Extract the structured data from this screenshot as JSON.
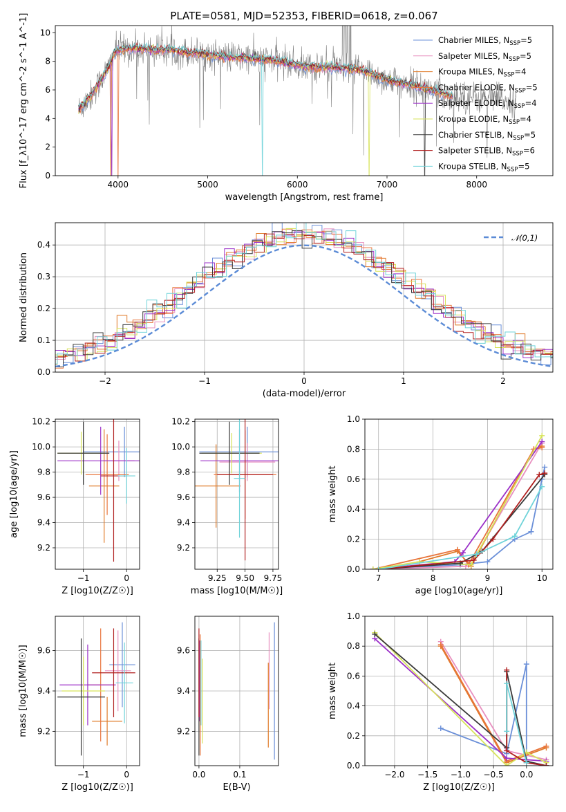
{
  "title": "PLATE=0581, MJD=52353, FIBERID=0618, z=0.067",
  "models": [
    {
      "name": "Chabrier MILES",
      "nssp": "5",
      "color": "#6a8fd8"
    },
    {
      "name": "Salpeter MILES",
      "nssp": "5",
      "color": "#e88fbf"
    },
    {
      "name": "Kroupa MILES",
      "nssp": "4",
      "color": "#e07b2a"
    },
    {
      "name": "Chabrier ELODIE",
      "nssp": "5",
      "color": "#e8743b"
    },
    {
      "name": "Salpeter ELODIE",
      "nssp": "4",
      "color": "#9b30c8"
    },
    {
      "name": "Kroupa ELODIE",
      "nssp": "4",
      "color": "#d7e35a"
    },
    {
      "name": "Chabrier STELIB",
      "nssp": "5",
      "color": "#3a3a3a"
    },
    {
      "name": "Salpeter STELIB",
      "nssp": "6",
      "color": "#b01e1e"
    },
    {
      "name": "Kroupa STELIB",
      "nssp": "5",
      "color": "#6fd3d9"
    }
  ],
  "chart_data": [
    {
      "id": "spectrum",
      "type": "line",
      "xlabel": "wavelength [Angstrom, rest frame]",
      "ylabel": "Flux [f_λ10^-17 erg cm^-2 s^-1 A^-1]",
      "xlim": [
        3300,
        8850
      ],
      "ylim": [
        0,
        10.5
      ],
      "xticks": [
        4000,
        5000,
        6000,
        7000,
        8000
      ],
      "yticks": [
        0,
        2,
        4,
        6,
        8,
        10
      ],
      "legend_position": "upper-right",
      "data_color": "#808080",
      "model_continuum": {
        "x": [
          3560,
          3700,
          3800,
          3900,
          3950,
          4000,
          4100,
          4200,
          4400,
          4600,
          4800,
          5000,
          5200,
          5500,
          5800,
          6100,
          6400,
          6700,
          7000,
          7300,
          7600,
          7700
        ],
        "y": [
          4.6,
          5.6,
          6.6,
          7.6,
          8.5,
          8.8,
          8.9,
          8.9,
          8.8,
          8.8,
          8.6,
          8.5,
          8.3,
          8.2,
          8.0,
          7.6,
          7.6,
          7.4,
          6.7,
          6.3,
          5.8,
          5.6
        ]
      }
    },
    {
      "id": "residuals",
      "type": "histogram",
      "xlabel": "(data-model)/error",
      "ylabel": "Normed distribution",
      "xlim": [
        -2.5,
        2.5
      ],
      "ylim": [
        0,
        0.47
      ],
      "xticks": [
        -2,
        -1,
        0,
        1,
        2
      ],
      "yticks": [
        0,
        0.1,
        0.2,
        0.3,
        0.4
      ],
      "bin_width": 0.1,
      "reference_label": "𝒩(0,1)",
      "reference_color": "#5b8bd6",
      "legend_position": "upper-right"
    },
    {
      "id": "age-vs-Z",
      "type": "errorbar",
      "xlabel": "Z [log10(Z/Z☉)]",
      "ylabel": "age  [log10(age/yr)]",
      "xlim": [
        -1.65,
        0.3
      ],
      "ylim": [
        9.03,
        10.22
      ],
      "xticks": [
        -1,
        0
      ],
      "yticks": [
        9.2,
        9.4,
        9.6,
        9.8,
        10.0,
        10.2
      ],
      "points": [
        {
          "x": -0.05,
          "xerr": 0.95,
          "y": 9.96,
          "yerr": 0.2,
          "model": 0
        },
        {
          "x": -0.18,
          "xerr": 0.36,
          "y": 9.89,
          "yerr": 0.16,
          "model": 1
        },
        {
          "x": -0.52,
          "xerr": 0.35,
          "y": 9.69,
          "yerr": 0.45,
          "model": 2
        },
        {
          "x": -0.45,
          "xerr": 0.5,
          "y": 9.78,
          "yerr": 0.32,
          "model": 3
        },
        {
          "x": -0.6,
          "xerr": 1.0,
          "y": 9.89,
          "yerr": 0.27,
          "model": 4
        },
        {
          "x": -1.05,
          "xerr": 0.55,
          "y": 9.95,
          "yerr": 0.17,
          "model": 5
        },
        {
          "x": -1.0,
          "xerr": 0.6,
          "y": 9.95,
          "yerr": 0.25,
          "model": 6
        },
        {
          "x": -0.3,
          "xerr": 0.3,
          "y": 9.77,
          "yerr": 0.68,
          "model": 7
        },
        {
          "x": 0.0,
          "xerr": 0.2,
          "y": 9.77,
          "yerr": 0.22,
          "model": 8
        }
      ]
    },
    {
      "id": "age-vs-mass",
      "type": "errorbar",
      "xlabel": "mass [log10(M/M☉)]",
      "ylabel": "",
      "xlim": [
        9.05,
        9.8
      ],
      "ylim": [
        9.03,
        10.22
      ],
      "xticks": [
        9.25,
        9.5,
        9.75
      ],
      "yticks": [
        9.2,
        9.4,
        9.6,
        9.8,
        10.0,
        10.2
      ],
      "points": [
        {
          "x": 9.52,
          "xerr": 0.43,
          "y": 9.96,
          "yerr": 0.2,
          "model": 0
        },
        {
          "x": 9.52,
          "xerr": 0.25,
          "y": 9.88,
          "yerr": 0.15,
          "model": 1
        },
        {
          "x": 9.24,
          "xerr": 0.22,
          "y": 9.69,
          "yerr": 0.33,
          "model": 2
        },
        {
          "x": 9.5,
          "xerr": 0.28,
          "y": 9.78,
          "yerr": 0.35,
          "model": 3
        },
        {
          "x": 9.45,
          "xerr": 0.35,
          "y": 9.89,
          "yerr": 0.25,
          "model": 4
        },
        {
          "x": 9.38,
          "xerr": 0.27,
          "y": 9.95,
          "yerr": 0.16,
          "model": 5
        },
        {
          "x": 9.36,
          "xerr": 0.27,
          "y": 9.95,
          "yerr": 0.25,
          "model": 6
        },
        {
          "x": 9.5,
          "xerr": 0.25,
          "y": 9.78,
          "yerr": 0.68,
          "model": 7
        },
        {
          "x": 9.45,
          "xerr": 0.05,
          "y": 9.75,
          "yerr": 0.47,
          "model": 8
        }
      ]
    },
    {
      "id": "weight-vs-age",
      "type": "line",
      "xlabel": "age  [log10(age/yr)]",
      "ylabel": "mass weight",
      "xlim": [
        6.75,
        10.2
      ],
      "ylim": [
        0,
        1.0
      ],
      "xticks": [
        7,
        8,
        9,
        10
      ],
      "yticks": [
        0,
        0.2,
        0.4,
        0.6,
        0.8,
        1.0
      ],
      "series": [
        {
          "model": 0,
          "x": [
            6.9,
            8.5,
            9.0,
            9.5,
            9.8,
            10.0,
            10.05
          ],
          "y": [
            0.0,
            0.03,
            0.05,
            0.2,
            0.25,
            0.6,
            0.68
          ]
        },
        {
          "model": 1,
          "x": [
            7.0,
            8.6,
            8.8,
            10.0
          ],
          "y": [
            0.0,
            0.02,
            0.1,
            0.84
          ]
        },
        {
          "model": 2,
          "x": [
            7.75,
            8.45,
            8.7,
            9.85,
            10.0
          ],
          "y": [
            0.05,
            0.12,
            0.02,
            0.8,
            0.82
          ]
        },
        {
          "model": 3,
          "x": [
            6.9,
            8.45,
            8.65,
            9.85,
            10.0
          ],
          "y": [
            0.0,
            0.13,
            0.03,
            0.8,
            0.81
          ]
        },
        {
          "model": 4,
          "x": [
            6.9,
            8.4,
            8.55,
            10.0
          ],
          "y": [
            0.0,
            0.05,
            0.11,
            0.85
          ]
        },
        {
          "model": 5,
          "x": [
            6.9,
            7.75,
            8.7,
            10.0
          ],
          "y": [
            0.0,
            0.05,
            0.03,
            0.89
          ]
        },
        {
          "model": 6,
          "x": [
            7.0,
            8.5,
            8.9,
            10.05
          ],
          "y": [
            0.0,
            0.04,
            0.12,
            0.63
          ]
        },
        {
          "model": 7,
          "x": [
            7.0,
            8.75,
            9.1,
            9.95,
            10.05
          ],
          "y": [
            0.0,
            0.06,
            0.2,
            0.63,
            0.64
          ]
        },
        {
          "model": 8,
          "x": [
            7.0,
            8.8,
            9.5,
            10.0
          ],
          "y": [
            0.0,
            0.1,
            0.22,
            0.55
          ]
        }
      ]
    },
    {
      "id": "mass-vs-Z",
      "type": "errorbar",
      "xlabel": "Z [log10(Z/Z☉)]",
      "ylabel": "mass [log10(M/M☉)]",
      "xlim": [
        -1.65,
        0.3
      ],
      "ylim": [
        9.03,
        9.77
      ],
      "xticks": [
        -1,
        0
      ],
      "yticks": [
        9.2,
        9.4,
        9.6
      ],
      "points": [
        {
          "x": -0.1,
          "xerr": 0.3,
          "y": 9.53,
          "yerr": 0.21,
          "model": 0
        },
        {
          "x": -0.2,
          "xerr": 0.3,
          "y": 9.5,
          "yerr": 0.2,
          "model": 1
        },
        {
          "x": -0.45,
          "xerr": 0.35,
          "y": 9.25,
          "yerr": 0.12,
          "model": 2
        },
        {
          "x": -0.6,
          "xerr": 0.3,
          "y": 9.43,
          "yerr": 0.28,
          "model": 3
        },
        {
          "x": -0.9,
          "xerr": 0.65,
          "y": 9.43,
          "yerr": 0.2,
          "model": 4
        },
        {
          "x": -1.0,
          "xerr": 0.5,
          "y": 9.4,
          "yerr": 0.17,
          "model": 5
        },
        {
          "x": -1.05,
          "xerr": 0.55,
          "y": 9.37,
          "yerr": 0.29,
          "model": 6
        },
        {
          "x": -0.3,
          "xerr": 0.5,
          "y": 9.49,
          "yerr": 0.22,
          "model": 7
        },
        {
          "x": -0.05,
          "xerr": 0.2,
          "y": 9.44,
          "yerr": 0.2,
          "model": 8
        }
      ]
    },
    {
      "id": "mass-vs-EBV",
      "type": "errorbar",
      "xlabel": "E(B-V)",
      "ylabel": "",
      "xlim": [
        -0.01,
        0.195
      ],
      "ylim": [
        9.03,
        9.77
      ],
      "xticks": [
        0.0,
        0.1
      ],
      "yticks": [
        9.2,
        9.4,
        9.6
      ],
      "points": [
        {
          "x": 0.185,
          "xerr": 0,
          "y": 9.4,
          "yerr": 0.34,
          "model": 0
        },
        {
          "x": 0.172,
          "xerr": 0,
          "y": 9.5,
          "yerr": 0.19,
          "model": 1
        },
        {
          "x": 0.17,
          "xerr": 0,
          "y": 9.33,
          "yerr": 0.21,
          "model": 2
        },
        {
          "x": 0.003,
          "xerr": 0,
          "y": 9.38,
          "yerr": 0.3,
          "model": 3
        },
        {
          "x": 0.001,
          "xerr": 0,
          "y": 9.45,
          "yerr": 0.2,
          "model": 4
        },
        {
          "x": 0.008,
          "xerr": 0,
          "y": 9.35,
          "yerr": 0.21,
          "model": 5
        },
        {
          "x": 0.0,
          "xerr": 0,
          "y": 9.37,
          "yerr": 0.29,
          "model": 6
        },
        {
          "x": 0.0,
          "xerr": 0,
          "y": 9.49,
          "yerr": 0.22,
          "model": 7
        },
        {
          "x": 0.005,
          "xerr": 0,
          "y": 9.44,
          "yerr": 0.21,
          "model": 8
        }
      ]
    },
    {
      "id": "weight-vs-Z",
      "type": "line",
      "xlabel": "Z [log10(Z/Z☉)]",
      "ylabel": "mass weight",
      "xlim": [
        -2.45,
        0.4
      ],
      "ylim": [
        0,
        1.0
      ],
      "xticks": [
        -2.0,
        -1.5,
        -1.0,
        -0.5,
        0.0
      ],
      "yticks": [
        0,
        0.2,
        0.4,
        0.6,
        0.8,
        1.0
      ],
      "series": [
        {
          "model": 0,
          "x": [
            -1.3,
            -0.3,
            0.0,
            0.0,
            0.3
          ],
          "y": [
            0.25,
            0.08,
            0.68,
            0.02,
            0.0
          ]
        },
        {
          "model": 1,
          "x": [
            -1.3,
            -0.3,
            0.3
          ],
          "y": [
            0.83,
            0.1,
            0.04
          ]
        },
        {
          "model": 2,
          "x": [
            -1.3,
            -0.3,
            0.3
          ],
          "y": [
            0.8,
            0.02,
            0.12
          ]
        },
        {
          "model": 3,
          "x": [
            -1.3,
            -0.3,
            0.3
          ],
          "y": [
            0.81,
            0.03,
            0.13
          ]
        },
        {
          "model": 4,
          "x": [
            -2.3,
            -0.3,
            0.3
          ],
          "y": [
            0.85,
            0.05,
            0.03
          ]
        },
        {
          "model": 5,
          "x": [
            -2.3,
            -0.3,
            0.0,
            0.3
          ],
          "y": [
            0.89,
            0.0,
            0.09,
            0.02
          ]
        },
        {
          "model": 6,
          "x": [
            -2.3,
            -0.3,
            -0.3,
            0.0,
            0.3
          ],
          "y": [
            0.88,
            0.12,
            0.63,
            0.03,
            0.0
          ]
        },
        {
          "model": 7,
          "x": [
            -0.3,
            -0.3,
            0.0,
            0.3
          ],
          "y": [
            0.64,
            0.1,
            0.02,
            0.0
          ]
        },
        {
          "model": 8,
          "x": [
            -0.3,
            -0.3,
            0.0
          ],
          "y": [
            0.23,
            0.55,
            0.02
          ]
        }
      ]
    }
  ]
}
